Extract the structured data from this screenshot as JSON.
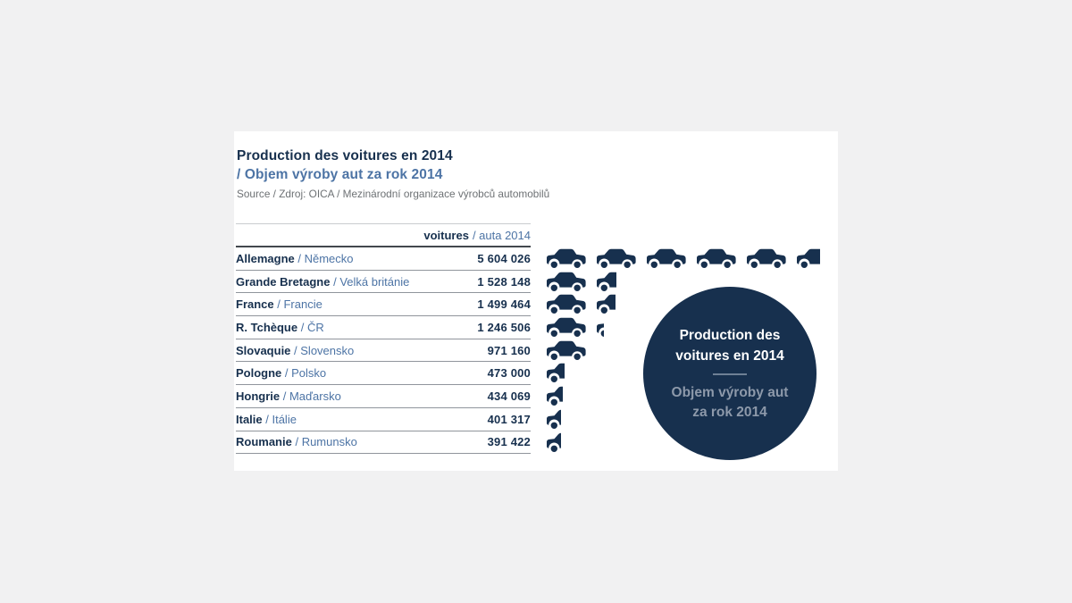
{
  "colors": {
    "background": "#f1f1f2",
    "panel": "#ffffff",
    "navy": "#17304e",
    "blue": "#4d74a5",
    "source_gray": "#6d7174",
    "line_light": "#c9cccf",
    "line_dark": "#43484e",
    "line_row": "#90959c",
    "badge_secondary": "#8d99aa",
    "badge_divider": "#6e8095"
  },
  "header": {
    "title_fr": "Production des voitures en 2014",
    "title_cz": "/ Objem výroby aut za rok 2014",
    "source": "Source / Zdroj: OICA / Mezinárodní organizace výrobců automobilů"
  },
  "table": {
    "column_header_fr": "voitures",
    "column_header_cz": "/ auta 2014",
    "rows": [
      {
        "country_fr": "Allemagne",
        "country_cz": "/ Německo",
        "value": "5 604 026"
      },
      {
        "country_fr": "Grande Bretagne",
        "country_cz": "/ Velká británie",
        "value": "1 528 148"
      },
      {
        "country_fr": "France",
        "country_cz": "/ Francie",
        "value": "1 499 464"
      },
      {
        "country_fr": "R. Tchèque",
        "country_cz": "/ ČR",
        "value": "1 246 506"
      },
      {
        "country_fr": "Slovaquie",
        "country_cz": "/ Slovensko",
        "value": "971 160"
      },
      {
        "country_fr": "Pologne",
        "country_cz": "/ Polsko",
        "value": "473 000"
      },
      {
        "country_fr": "Hongrie",
        "country_cz": "/ Maďarsko",
        "value": "434 069"
      },
      {
        "country_fr": "Italie",
        "country_cz": "/ Itálie",
        "value": "401 317"
      },
      {
        "country_fr": "Roumanie",
        "country_cz": "/ Rumunsko",
        "value": "391 422"
      }
    ]
  },
  "badge": {
    "fr_line1": "Production des",
    "fr_line2": "voitures en 2014",
    "cz_line1": "Objem výroby aut",
    "cz_line2": "za rok 2014"
  },
  "chart_data": {
    "type": "pictogram",
    "icon": "car",
    "unit_per_icon": 1000000,
    "title": "Production des voitures en 2014 / Objem výroby aut za rok 2014",
    "source": "Source / Zdroj: OICA / Mezinárodní organizace výrobců automobilů",
    "column_header": "voitures / auta 2014",
    "categories": [
      "Allemagne / Německo",
      "Grande Bretagne / Velká británie",
      "France / Francie",
      "R. Tchèque / ČR",
      "Slovaquie / Slovensko",
      "Pologne / Polsko",
      "Hongrie / Maďarsko",
      "Italie / Itálie",
      "Roumanie / Rumunsko"
    ],
    "values": [
      5604026,
      1528148,
      1499464,
      1246506,
      971160,
      473000,
      434069,
      401317,
      391422
    ],
    "legend_position": "none",
    "grid": false
  }
}
